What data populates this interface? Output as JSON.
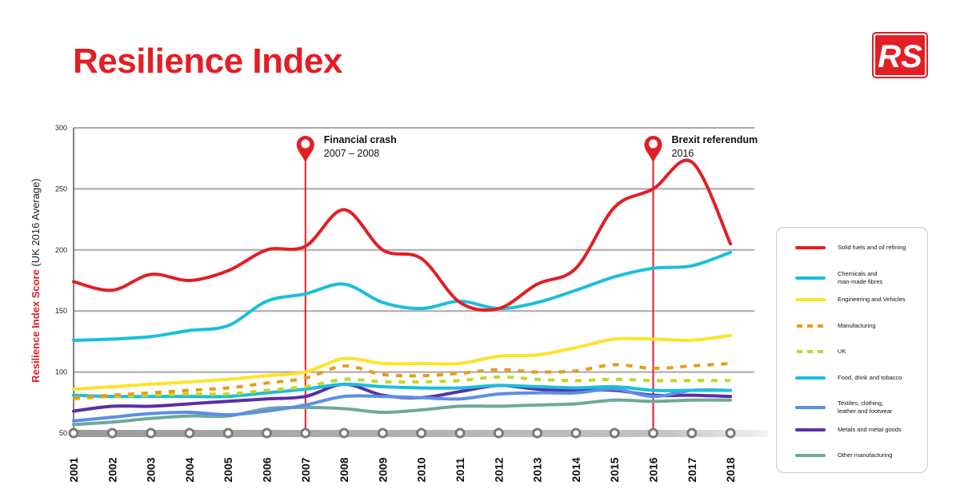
{
  "title": "Resilience Index",
  "logo_text": "RS",
  "colors": {
    "brand": "#e31e24",
    "grid": "#a8a8a8",
    "axis": "#555555"
  },
  "chart_data": {
    "type": "line",
    "title": "Resilience Index",
    "ylabel_highlight": "Resilience Index Score",
    "ylabel_rest": "(UK 2016 Average)",
    "ylim": [
      50,
      300
    ],
    "yticks": [
      50,
      100,
      150,
      200,
      250,
      300
    ],
    "categories": [
      "2001",
      "2002",
      "2003",
      "2004",
      "2005",
      "2006",
      "2007",
      "2008",
      "2009",
      "2010",
      "2011",
      "2012",
      "2013",
      "2014",
      "2015",
      "2016",
      "2017",
      "2018"
    ],
    "annotations": [
      {
        "x": "2007",
        "title": "Financial crash",
        "subtitle": "2007 – 2008"
      },
      {
        "x": "2016",
        "title": "Brexit referendum",
        "subtitle": "2016"
      }
    ],
    "series": [
      {
        "name": "Other manufacturing",
        "color": "#6fa89c",
        "dashed": false,
        "values": [
          57,
          59,
          62,
          64,
          64,
          70,
          71,
          70,
          67,
          69,
          72,
          72,
          73,
          74,
          77,
          76,
          77,
          77
        ]
      },
      {
        "name": "Metals and metal goods",
        "color": "#5b2ea6",
        "dashed": false,
        "values": [
          68,
          72,
          72,
          74,
          76,
          78,
          80,
          90,
          81,
          79,
          84,
          89,
          86,
          85,
          85,
          81,
          81,
          80
        ]
      },
      {
        "name": "Textiles, clothing, leather and footwear",
        "color": "#5a8fe6",
        "dashed": false,
        "values": [
          60,
          63,
          66,
          67,
          65,
          68,
          73,
          80,
          80,
          79,
          78,
          82,
          83,
          83,
          86,
          80,
          85,
          85
        ]
      },
      {
        "name": "Food, drink and tobacco",
        "color": "#19bfdc",
        "dashed": false,
        "values": [
          81,
          80,
          80,
          80,
          80,
          83,
          86,
          90,
          88,
          87,
          87,
          89,
          88,
          87,
          88,
          85,
          85,
          85
        ]
      },
      {
        "name": "UK",
        "color": "#c3d626",
        "dashed": true,
        "values": [
          78,
          80,
          81,
          82,
          82,
          85,
          88,
          94,
          92,
          92,
          93,
          96,
          94,
          93,
          94,
          93,
          93,
          93
        ]
      },
      {
        "name": "Manufacturing",
        "color": "#e99a1d",
        "dashed": true,
        "values": [
          79,
          81,
          83,
          85,
          87,
          91,
          95,
          105,
          98,
          97,
          99,
          102,
          100,
          101,
          106,
          103,
          105,
          107
        ]
      },
      {
        "name": "Engineering and Vehicles",
        "color": "#ffe229",
        "dashed": false,
        "values": [
          86,
          88,
          90,
          92,
          94,
          97,
          100,
          111,
          107,
          107,
          107,
          113,
          114,
          120,
          127,
          127,
          126,
          130
        ]
      },
      {
        "name": "Chemicals and man-made fibres",
        "color": "#19bfdc",
        "dashed": false,
        "values": [
          126,
          127,
          129,
          134,
          138,
          158,
          164,
          172,
          157,
          152,
          158,
          152,
          157,
          167,
          178,
          185,
          187,
          198
        ]
      },
      {
        "name": "Solid fuels and oil refining",
        "color": "#e31e24",
        "dashed": false,
        "values": [
          174,
          167,
          180,
          175,
          183,
          200,
          203,
          233,
          200,
          193,
          157,
          152,
          172,
          185,
          235,
          250,
          272,
          205
        ]
      }
    ],
    "legend": [
      {
        "label": "Solid fuels and oil refining",
        "color": "#e31e24",
        "dashed": false
      },
      {
        "label": "Chemicals and\nman-made fibres",
        "color": "#19bfdc",
        "dashed": false
      },
      {
        "label": "Engineering and Vehicles",
        "color": "#ffe229",
        "dashed": false
      },
      {
        "label": "Manufacturing",
        "color": "#e99a1d",
        "dashed": true
      },
      {
        "label": "UK",
        "color": "#c3d626",
        "dashed": true
      },
      {
        "label": "Food, drink and tobacco",
        "color": "#19bfdc",
        "dashed": false
      },
      {
        "label": "Textiles, clothing,\nleather and footwear",
        "color": "#5a8fe6",
        "dashed": false
      },
      {
        "label": "Metals and metal goods",
        "color": "#5b2ea6",
        "dashed": false
      },
      {
        "label": "Other manufacturing",
        "color": "#6fa89c",
        "dashed": false
      }
    ]
  }
}
